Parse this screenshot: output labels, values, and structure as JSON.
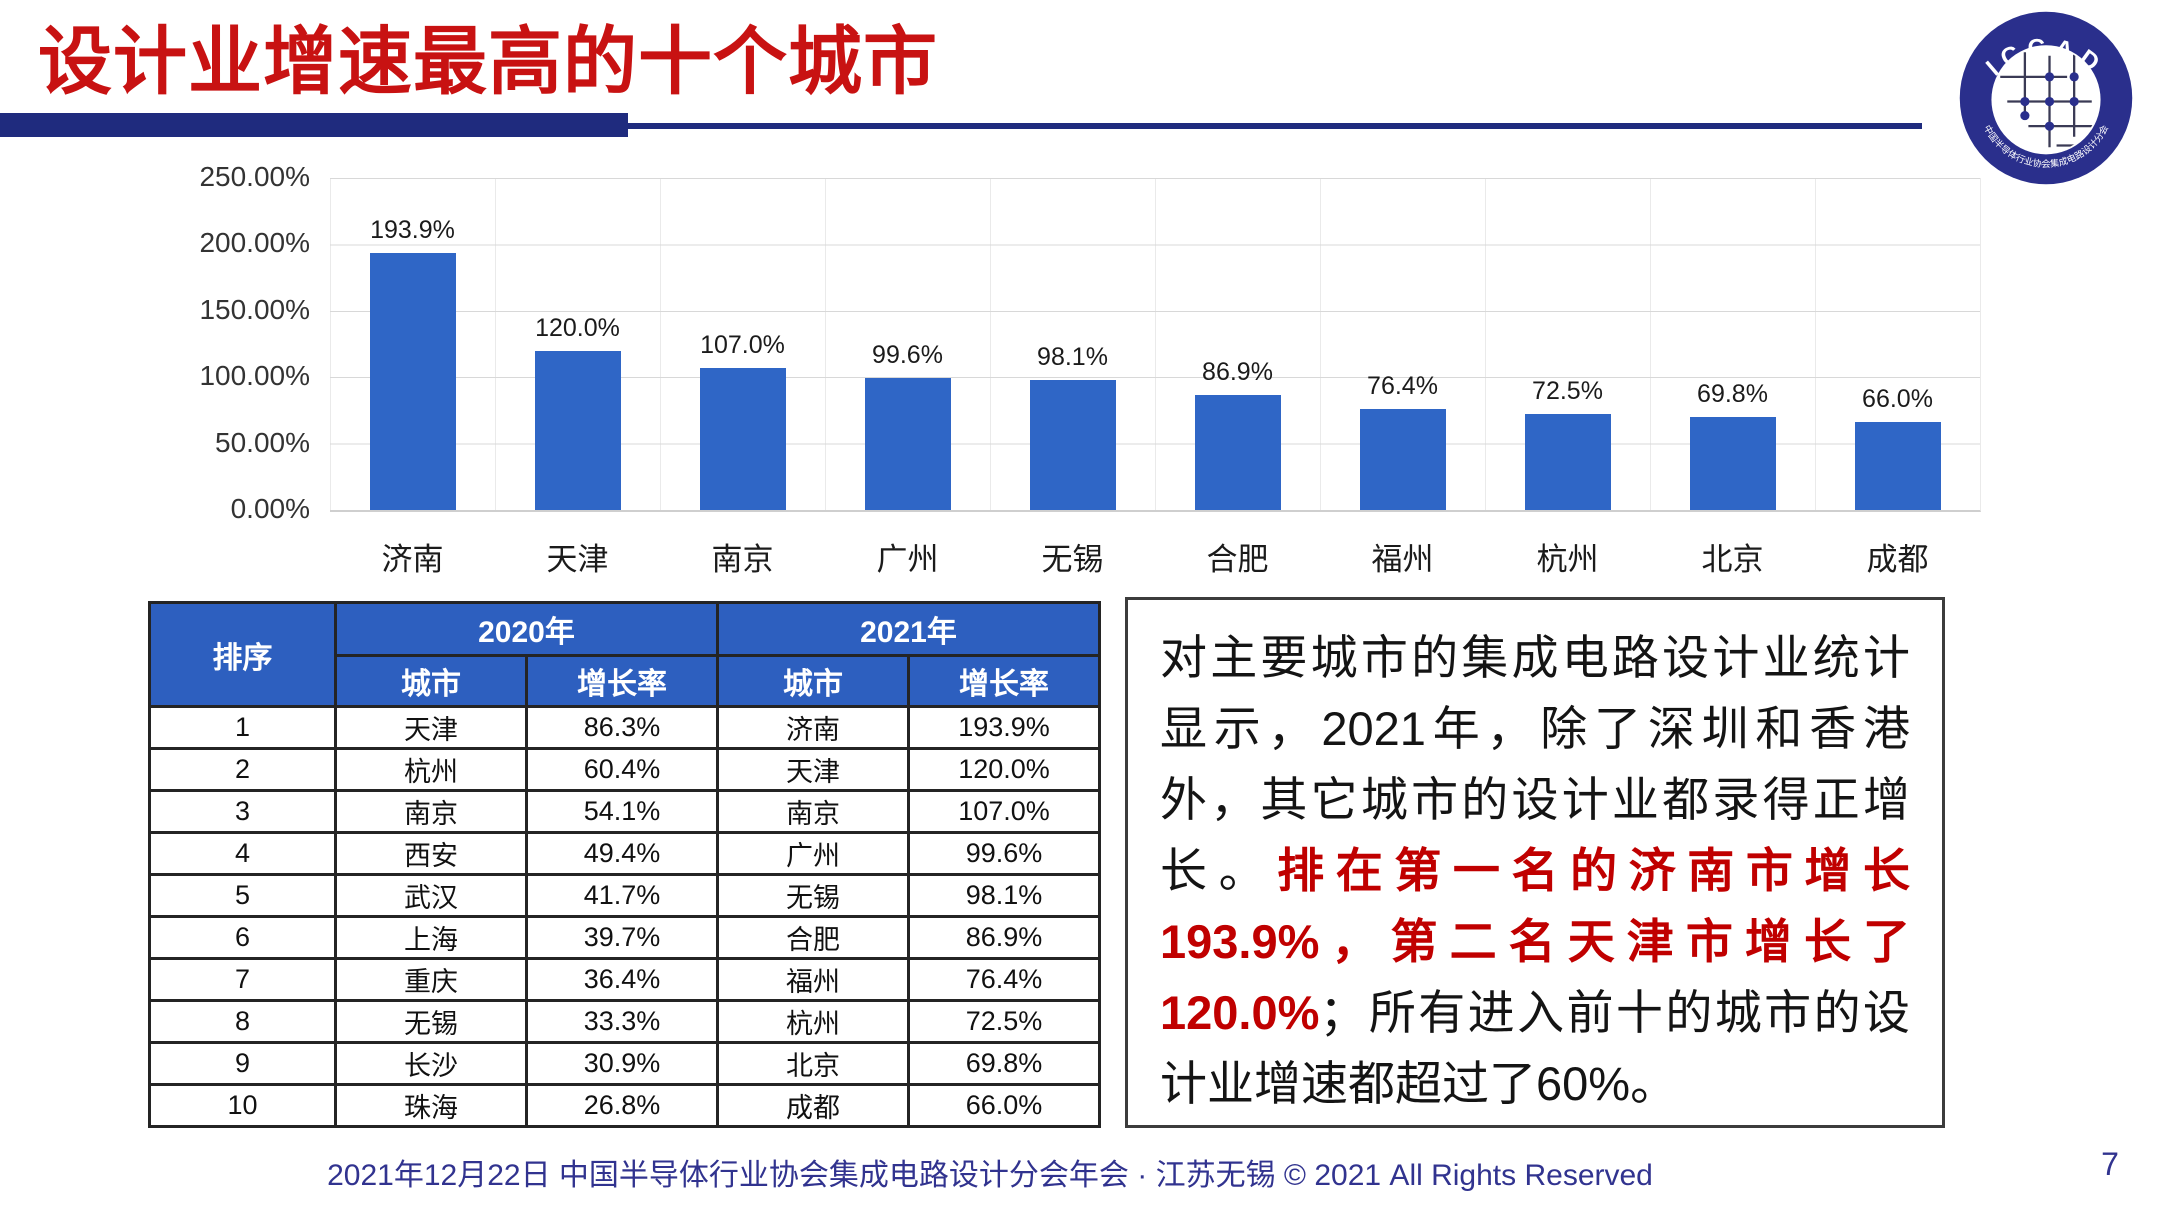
{
  "slide": {
    "title": "设计业增速最高的十个城市",
    "footer_text": "2021年12月22日 中国半导体行业协会集成电路设计分会年会 · 江苏无锡 © 2021 All Rights Reserved",
    "page_number": "7"
  },
  "logo": {
    "acronym": "ICCAD",
    "org_name": "中国半导体行业协会集成电路设计分会"
  },
  "chart_data": {
    "type": "bar",
    "title": "",
    "xlabel": "",
    "ylabel": "",
    "categories": [
      "济南",
      "天津",
      "南京",
      "广州",
      "无锡",
      "合肥",
      "福州",
      "杭州",
      "北京",
      "成都"
    ],
    "values": [
      193.9,
      120.0,
      107.0,
      99.6,
      98.1,
      86.9,
      76.4,
      72.5,
      69.8,
      66.0
    ],
    "labels": [
      "193.9%",
      "120.0%",
      "107.0%",
      "99.6%",
      "98.1%",
      "86.9%",
      "76.4%",
      "72.5%",
      "69.8%",
      "66.0%"
    ],
    "y_ticks": [
      "250.00%",
      "200.00%",
      "150.00%",
      "100.00%",
      "50.00%",
      "0.00%"
    ],
    "ylim": [
      0,
      250
    ],
    "grid": true,
    "legend": "none",
    "bar_color": "#2F66C6"
  },
  "table": {
    "rank_header": "排序",
    "year_2020_header": "2020年",
    "year_2021_header": "2021年",
    "city_header": "城市",
    "rate_header": "增长率",
    "rows": [
      {
        "rank": "1",
        "city_2020": "天津",
        "rate_2020": "86.3%",
        "city_2021": "济南",
        "rate_2021": "193.9%"
      },
      {
        "rank": "2",
        "city_2020": "杭州",
        "rate_2020": "60.4%",
        "city_2021": "天津",
        "rate_2021": "120.0%"
      },
      {
        "rank": "3",
        "city_2020": "南京",
        "rate_2020": "54.1%",
        "city_2021": "南京",
        "rate_2021": "107.0%"
      },
      {
        "rank": "4",
        "city_2020": "西安",
        "rate_2020": "49.4%",
        "city_2021": "广州",
        "rate_2021": "99.6%"
      },
      {
        "rank": "5",
        "city_2020": "武汉",
        "rate_2020": "41.7%",
        "city_2021": "无锡",
        "rate_2021": "98.1%"
      },
      {
        "rank": "6",
        "city_2020": "上海",
        "rate_2020": "39.7%",
        "city_2021": "合肥",
        "rate_2021": "86.9%"
      },
      {
        "rank": "7",
        "city_2020": "重庆",
        "rate_2020": "36.4%",
        "city_2021": "福州",
        "rate_2021": "76.4%"
      },
      {
        "rank": "8",
        "city_2020": "无锡",
        "rate_2020": "33.3%",
        "city_2021": "杭州",
        "rate_2021": "72.5%"
      },
      {
        "rank": "9",
        "city_2020": "长沙",
        "rate_2020": "30.9%",
        "city_2021": "北京",
        "rate_2021": "69.8%"
      },
      {
        "rank": "10",
        "city_2020": "珠海",
        "rate_2020": "26.8%",
        "city_2021": "成都",
        "rate_2021": "66.0%"
      }
    ]
  },
  "note": {
    "text_before": "对主要城市的集成电路设计业统计显示，2021年，除了深圳和香港外，其它城市的设计业都录得正增长。",
    "highlight": "排在第一名的济南市增长193.9%，第二名天津市增长了120.0%",
    "text_after": "；所有进入前十的城市的设计业增速都超过了60%。"
  },
  "colors": {
    "title_red": "#C81212",
    "accent_navy": "#1F2B7E",
    "bar_blue": "#2F66C6",
    "table_header_blue": "#2D5FBF",
    "footer_blue": "#31338F",
    "note_red": "#C00000"
  }
}
